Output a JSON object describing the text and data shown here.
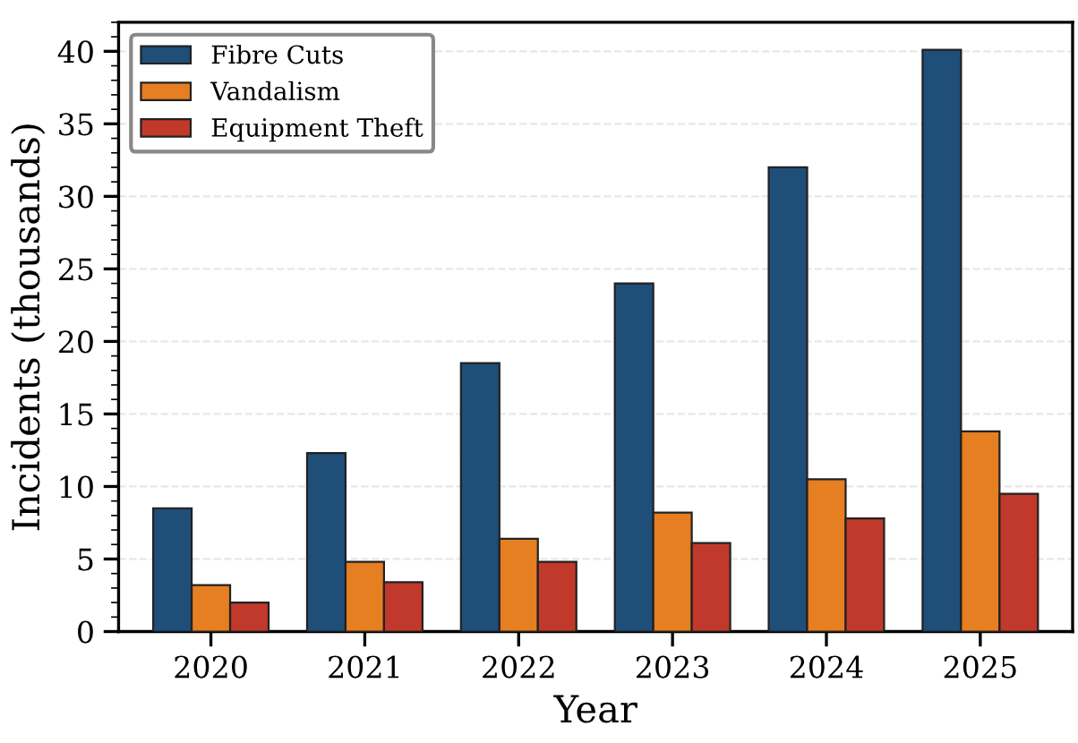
{
  "chart_data": {
    "type": "bar",
    "xlabel": "Year",
    "ylabel": "Incidents (thousands)",
    "categories": [
      "2020",
      "2021",
      "2022",
      "2023",
      "2024",
      "2025"
    ],
    "series": [
      {
        "name": "Fibre Cuts",
        "color": "#1f4e79",
        "values": [
          8.5,
          12.3,
          18.5,
          24.0,
          32.0,
          40.1
        ]
      },
      {
        "name": "Vandalism",
        "color": "#e67e22",
        "values": [
          3.2,
          4.8,
          6.4,
          8.2,
          10.5,
          13.8
        ]
      },
      {
        "name": "Equipment Theft",
        "color": "#c0392b",
        "values": [
          2.0,
          3.4,
          4.8,
          6.1,
          7.8,
          9.5
        ]
      }
    ],
    "ylim": [
      0,
      42
    ],
    "yticks": [
      0,
      5,
      10,
      15,
      20,
      25,
      30,
      35,
      40
    ],
    "grid": "y",
    "legend": "top left"
  }
}
